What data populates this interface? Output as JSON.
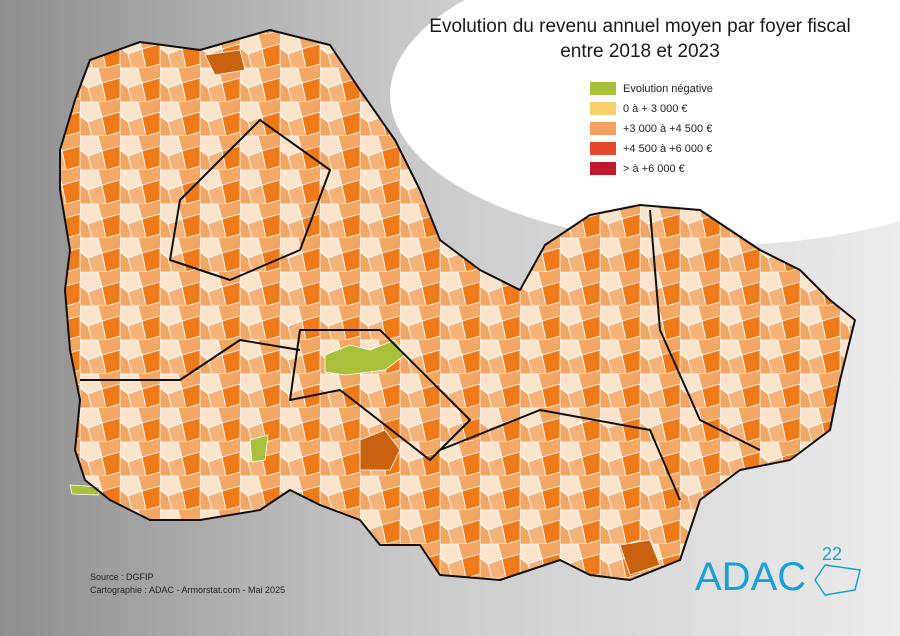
{
  "title": [
    "Evolution du revenu annuel moyen par foyer fiscal",
    "entre 2018 et 2023"
  ],
  "legend": [
    {
      "label": "Evolution négative",
      "color": "#a9c03b"
    },
    {
      "label": "0 à + 3 000 €",
      "color": "#f8d06e"
    },
    {
      "label": "+3 000 à +4 500 €",
      "color": "#f4a061"
    },
    {
      "label": "+4 500 à +6 000 €",
      "color": "#e5482c"
    },
    {
      "label": "> à +6 000 €",
      "color": "#c1172d"
    }
  ],
  "credits": [
    "Source : DGFIP",
    "Cartographie : ADAC - Armorstat.com - Mai 2025"
  ],
  "logo": {
    "text": "ADAC",
    "number": "22"
  }
}
